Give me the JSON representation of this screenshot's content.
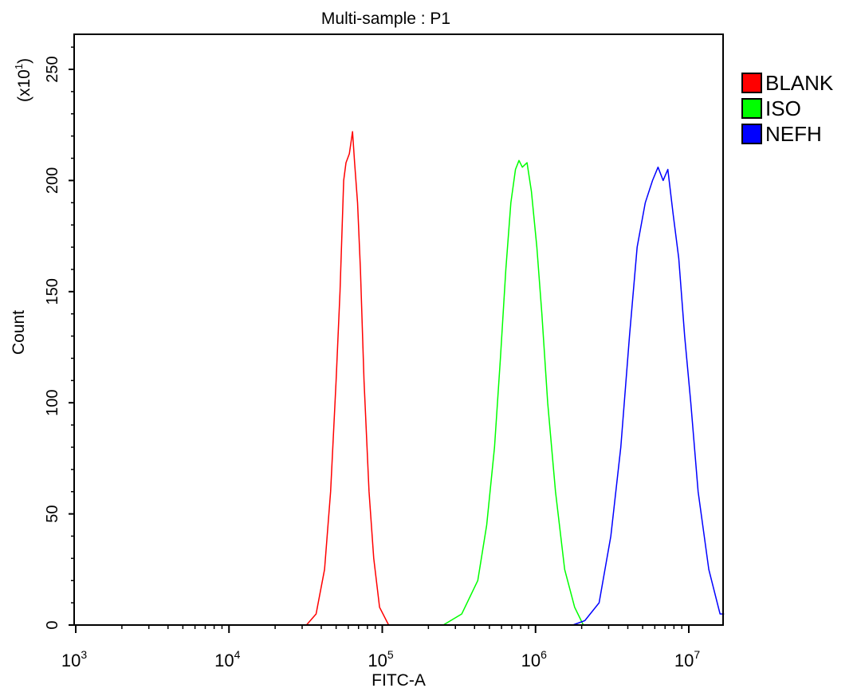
{
  "chart_data": {
    "type": "area",
    "title": "Multi-sample : P1",
    "xlabel": "FITC-A",
    "ylabel": "Count",
    "y_multiplier_label": "(x10",
    "y_multiplier_exp": "1",
    "y_multiplier_close": ")",
    "x_scale": "log",
    "xlim": [
      1000,
      17000000
    ],
    "ylim": [
      0,
      265
    ],
    "x_ticks": [
      {
        "value": 1000,
        "base": "10",
        "exp": "3"
      },
      {
        "value": 10000,
        "base": "10",
        "exp": "4"
      },
      {
        "value": 100000,
        "base": "10",
        "exp": "5"
      },
      {
        "value": 1000000,
        "base": "10",
        "exp": "6"
      },
      {
        "value": 10000000,
        "base": "10",
        "exp": "7"
      }
    ],
    "y_ticks": [
      {
        "value": 0,
        "label": "0"
      },
      {
        "value": 50,
        "label": "50"
      },
      {
        "value": 100,
        "label": "100"
      },
      {
        "value": 150,
        "label": "150"
      },
      {
        "value": 200,
        "label": "200"
      },
      {
        "value": 250,
        "label": "250"
      }
    ],
    "legend_position": "right",
    "series": [
      {
        "name": "BLANK",
        "color": "#ff0000",
        "points": [
          [
            32000,
            0
          ],
          [
            37000,
            5
          ],
          [
            42000,
            25
          ],
          [
            46000,
            60
          ],
          [
            50000,
            110
          ],
          [
            53000,
            150
          ],
          [
            56000,
            200
          ],
          [
            58000,
            208
          ],
          [
            61000,
            212
          ],
          [
            64000,
            222
          ],
          [
            66000,
            208
          ],
          [
            69000,
            190
          ],
          [
            72000,
            160
          ],
          [
            76000,
            110
          ],
          [
            82000,
            60
          ],
          [
            88000,
            30
          ],
          [
            96000,
            8
          ],
          [
            110000,
            0
          ]
        ]
      },
      {
        "name": "ISO",
        "color": "#00ff00",
        "points": [
          [
            250000,
            0
          ],
          [
            330000,
            5
          ],
          [
            420000,
            20
          ],
          [
            480000,
            45
          ],
          [
            540000,
            80
          ],
          [
            590000,
            120
          ],
          [
            640000,
            160
          ],
          [
            690000,
            190
          ],
          [
            740000,
            205
          ],
          [
            780000,
            209
          ],
          [
            820000,
            206
          ],
          [
            880000,
            208
          ],
          [
            940000,
            195
          ],
          [
            1020000,
            170
          ],
          [
            1100000,
            140
          ],
          [
            1200000,
            100
          ],
          [
            1350000,
            60
          ],
          [
            1550000,
            25
          ],
          [
            1800000,
            8
          ],
          [
            2050000,
            0
          ]
        ]
      },
      {
        "name": "NEFH",
        "color": "#0000ff",
        "points": [
          [
            1750000,
            0
          ],
          [
            2100000,
            2
          ],
          [
            2600000,
            10
          ],
          [
            3100000,
            40
          ],
          [
            3600000,
            80
          ],
          [
            4100000,
            130
          ],
          [
            4600000,
            170
          ],
          [
            5200000,
            190
          ],
          [
            5800000,
            200
          ],
          [
            6300000,
            206
          ],
          [
            6800000,
            200
          ],
          [
            7300000,
            205
          ],
          [
            7900000,
            185
          ],
          [
            8600000,
            165
          ],
          [
            9400000,
            130
          ],
          [
            10300000,
            100
          ],
          [
            11500000,
            60
          ],
          [
            13500000,
            25
          ],
          [
            16000000,
            5
          ],
          [
            17000000,
            5
          ]
        ]
      }
    ]
  }
}
